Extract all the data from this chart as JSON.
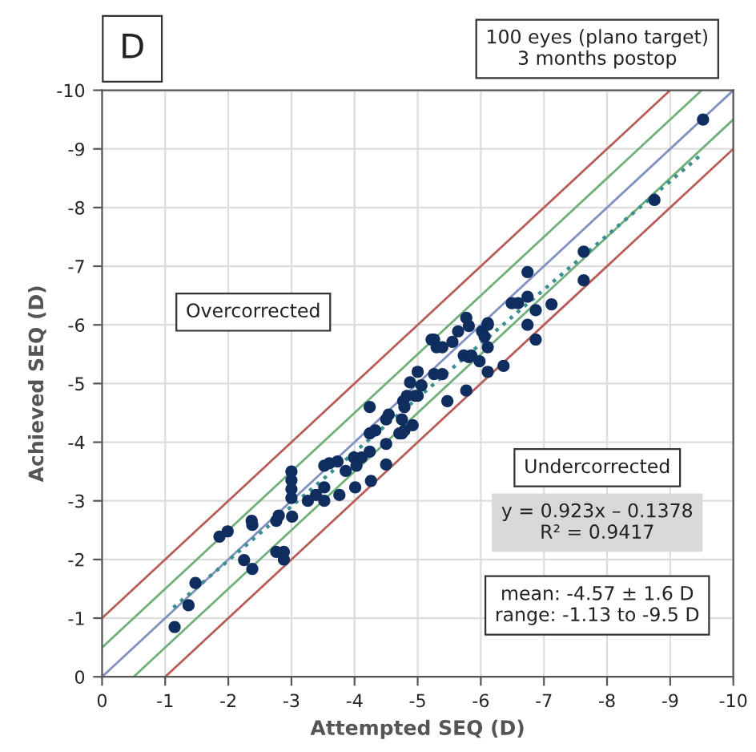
{
  "chart_data": {
    "type": "scatter",
    "xlabel": "Attempted SEQ (D)",
    "ylabel": "Achieved SEQ (D)",
    "annotations": [
      "D",
      "100 eyes (plano target)\n3 months postop",
      "Overcorrected",
      "Undercorrected",
      "y = 0.923x – 0.1378\nR² = 0.9417",
      "mean: -4.57 ± 1.6 D\nrange: -1.13 to -9.5 D"
    ],
    "xlim": [
      0,
      -10
    ],
    "ylim": [
      0,
      -10
    ],
    "xticks": [
      0,
      -1,
      -2,
      -3,
      -4,
      -5,
      -6,
      -7,
      -8,
      -9,
      -10
    ],
    "yticks": [
      0,
      -1,
      -2,
      -3,
      -4,
      -5,
      -6,
      -7,
      -8,
      -9,
      -10
    ],
    "grid": true,
    "legend": false,
    "marker": "circle",
    "series": [
      {
        "type": "line",
        "color": "#b85c58",
        "line_style": "solid",
        "marker": "none",
        "x": [
          0,
          -9
        ],
        "values": [
          -1,
          -10
        ]
      },
      {
        "type": "line",
        "color": "#6fb07a",
        "line_style": "solid",
        "marker": "none",
        "x": [
          0,
          -9.5
        ],
        "values": [
          -0.5,
          -10
        ]
      },
      {
        "type": "line",
        "color": "#8090c0",
        "line_style": "solid",
        "marker": "none",
        "x": [
          0,
          -10
        ],
        "values": [
          0,
          -10
        ]
      },
      {
        "type": "line",
        "color": "#6fb07a",
        "line_style": "solid",
        "marker": "none",
        "x": [
          -0.5,
          -10
        ],
        "values": [
          0,
          -9.5
        ]
      },
      {
        "type": "line",
        "color": "#b85c58",
        "line_style": "solid",
        "marker": "none",
        "x": [
          -1,
          -10
        ],
        "values": [
          0,
          -9
        ]
      },
      {
        "type": "line",
        "color": "#3a8f8f",
        "line_style": "dotted",
        "marker": "none",
        "x": [
          -1.13,
          -9.5
        ],
        "values": [
          -1.18,
          -8.91
        ]
      },
      {
        "color": "#0f2d5e",
        "x": [
          -1.15,
          -1.37,
          -1.48,
          -1.86,
          -1.99,
          -2.25,
          -2.37,
          -2.38,
          -2.38,
          -2.76,
          -2.88,
          -2.88,
          -2.76,
          -2.8,
          -3.01,
          -3.0,
          -3.0,
          -3.0,
          -3.0,
          -3.26,
          -3.39,
          -3.52,
          -3.52,
          -3.52,
          -3.6,
          -3.73,
          -3.76,
          -3.86,
          -3.99,
          -4.03,
          -4.01,
          -4.11,
          -4.24,
          -4.24,
          -4.24,
          -4.26,
          -4.33,
          -4.5,
          -4.5,
          -4.5,
          -4.54,
          -4.71,
          -4.75,
          -4.77,
          -4.83,
          -4.79,
          -4.92,
          -5.0,
          -5.06,
          -9.52,
          -8.75,
          -7.63,
          -7.63,
          -6.74,
          -6.49,
          -6.59,
          -6.74,
          -6.87,
          -7.12,
          -6.74,
          -6.87,
          -5.77,
          -5.81,
          -6.02,
          -6.11,
          -6.06,
          -6.11,
          -5.64,
          -5.26,
          -5.39,
          -5.73,
          -5.81,
          -6.11,
          -5.26,
          -5.39,
          -5.22,
          -5.3,
          -5.55,
          -5.85,
          -5.98,
          -6.11,
          -6.36,
          -5.77,
          -4.88,
          -4.96,
          -4.79,
          -5.0,
          -4.75,
          -5.47
        ],
        "values": [
          -0.85,
          -1.22,
          -1.6,
          -2.39,
          -2.48,
          -1.99,
          -2.66,
          -2.59,
          -1.84,
          -2.13,
          -2.13,
          -2.0,
          -2.66,
          -2.75,
          -2.73,
          -3.5,
          -3.35,
          -3.2,
          -3.05,
          -3.0,
          -3.1,
          -3.0,
          -3.23,
          -3.6,
          -3.64,
          -3.67,
          -3.1,
          -3.51,
          -3.74,
          -3.6,
          -3.23,
          -3.74,
          -4.15,
          -3.84,
          -4.6,
          -3.34,
          -4.2,
          -4.39,
          -3.97,
          -3.62,
          -4.47,
          -4.15,
          -4.39,
          -4.7,
          -4.79,
          -4.2,
          -4.29,
          -4.79,
          -4.97,
          -9.5,
          -8.13,
          -7.25,
          -6.76,
          -6.9,
          -6.37,
          -6.37,
          -6.48,
          -6.25,
          -6.35,
          -6.0,
          -5.75,
          -6.12,
          -5.98,
          -5.89,
          -6.0,
          -5.8,
          -5.62,
          -5.89,
          -5.75,
          -5.62,
          -5.48,
          -5.45,
          -5.2,
          -5.16,
          -5.16,
          -5.75,
          -5.62,
          -5.71,
          -5.48,
          -5.38,
          -6.03,
          -5.3,
          -4.88,
          -5.02,
          -4.79,
          -4.6,
          -5.2,
          -4.15,
          -4.7
        ]
      }
    ]
  }
}
